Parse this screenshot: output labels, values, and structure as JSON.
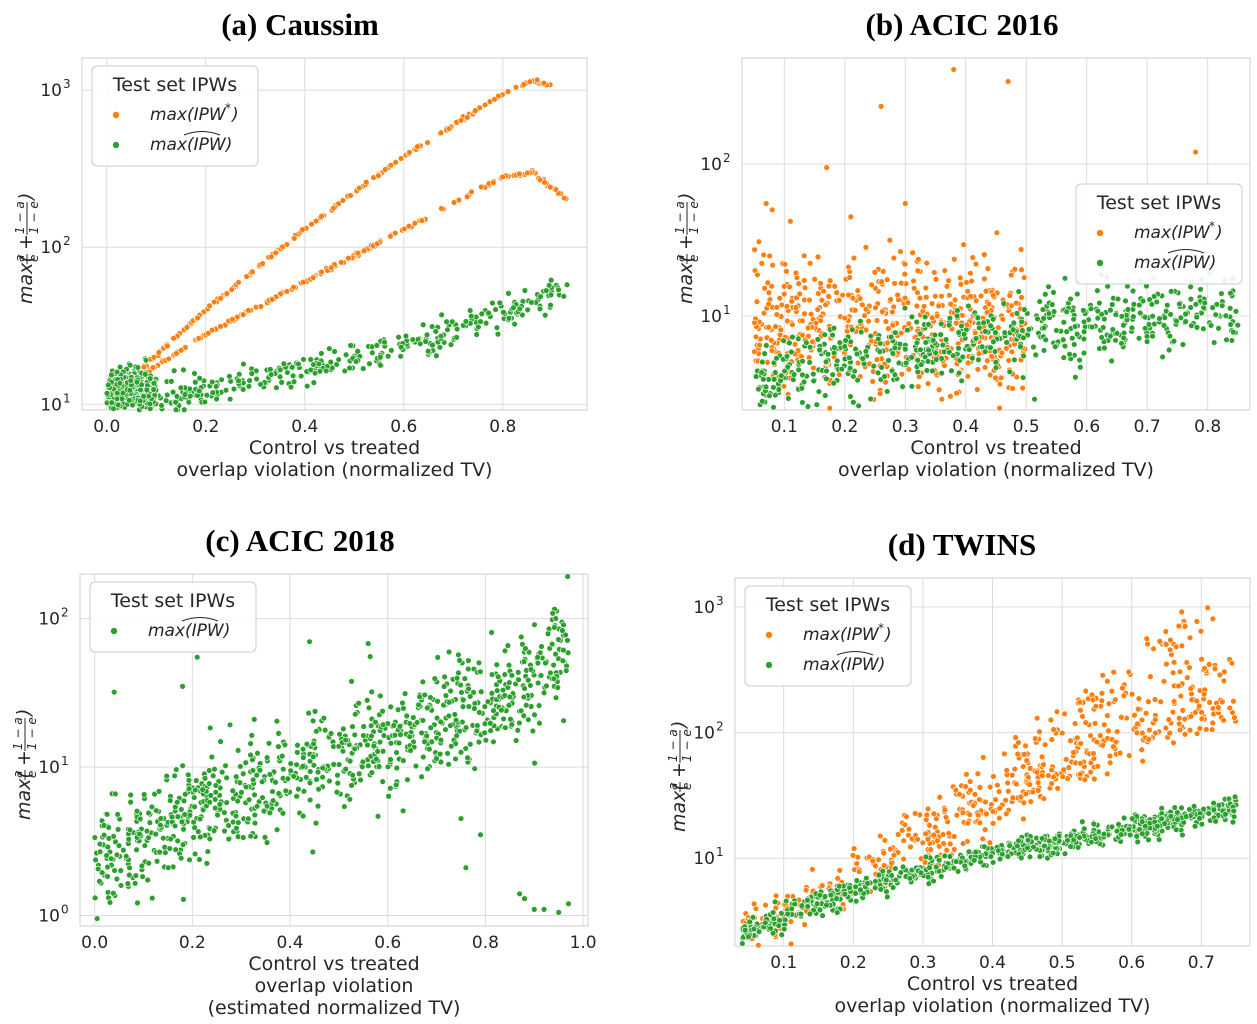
{
  "chart_data": [
    {
      "id": "a",
      "type": "scatter",
      "title": "(a) Caussim",
      "xlabel": [
        "Control vs treated",
        "overlap violation (normalized TV)"
      ],
      "ylabel": "max(a/e + (1−a)/(1−e))",
      "yscale": "log",
      "xlim": [
        -0.05,
        0.97
      ],
      "ylim": [
        9.2,
        1600
      ],
      "xticks": [
        0.0,
        0.2,
        0.4,
        0.6,
        0.8
      ],
      "xtick_labels": [
        "0.0",
        "0.2",
        "0.4",
        "0.6",
        "0.8"
      ],
      "yticks": [
        10,
        100,
        1000
      ],
      "ytick_labels": [
        {
          "base": "10",
          "exp": "1"
        },
        {
          "base": "10",
          "exp": "2"
        },
        {
          "base": "10",
          "exp": "3"
        }
      ],
      "grid": true,
      "legend": {
        "title": "Test set IPWs",
        "placement": "top-left",
        "entries": [
          "max(IPW*)",
          "max(IPW^)"
        ]
      },
      "series": [
        {
          "name": "max(IPW*)",
          "color": "#ff7f0e",
          "count": 380,
          "trends": [
            {
              "x": [
                0.02,
                0.2,
                0.4,
                0.6,
                0.8,
                0.86,
                0.9
              ],
              "y": [
                12,
                40,
                130,
                380,
                950,
                1150,
                1050
              ],
              "spread": 0.005
            },
            {
              "x": [
                0.02,
                0.2,
                0.4,
                0.6,
                0.8,
                0.86,
                0.93
              ],
              "y": [
                12,
                28,
                60,
                130,
                280,
                300,
                200
              ],
              "spread": 0.005
            }
          ]
        },
        {
          "name": "max(IPW^)",
          "color": "#2ca02c",
          "count": 700,
          "trends": [
            {
              "x": [
                0.0,
                0.1,
                0.2,
                0.4,
                0.6,
                0.8,
                0.93
              ],
              "y": [
                11,
                11,
                12,
                17,
                23,
                38,
                55
              ],
              "spread": 0.05
            },
            {
              "x": [
                0.0,
                0.05,
                0.1
              ],
              "y": [
                12,
                13,
                11
              ],
              "spread": 0.07
            }
          ]
        }
      ]
    },
    {
      "id": "b",
      "type": "scatter",
      "title": "(b) ACIC 2016",
      "xlabel": [
        "Control vs treated",
        "overlap violation (normalized TV)"
      ],
      "ylabel": "max(a/e + (1−a)/(1−e))",
      "yscale": "log",
      "xlim": [
        0.03,
        0.87
      ],
      "ylim": [
        2.4,
        500
      ],
      "xticks": [
        0.1,
        0.2,
        0.3,
        0.4,
        0.5,
        0.6,
        0.7,
        0.8
      ],
      "xtick_labels": [
        "0.1",
        "0.2",
        "0.3",
        "0.4",
        "0.5",
        "0.6",
        "0.7",
        "0.8"
      ],
      "yticks": [
        10,
        100
      ],
      "ytick_labels": [
        {
          "base": "10",
          "exp": "1"
        },
        {
          "base": "10",
          "exp": "2"
        }
      ],
      "grid": true,
      "legend": {
        "title": "Test set IPWs",
        "placement": "center-right",
        "entries": [
          "max(IPW*)",
          "max(IPW^)"
        ]
      },
      "series": [
        {
          "name": "max(IPW*)",
          "color": "#ff7f0e",
          "count": 600,
          "trends": [
            {
              "x": [
                0.05,
                0.2,
                0.4,
                0.5
              ],
              "y": [
                8,
                9,
                8.5,
                8
              ],
              "spread": 0.25
            }
          ],
          "extra_points": [
            [
              0.38,
              420
            ],
            [
              0.47,
              350
            ],
            [
              0.26,
              240
            ],
            [
              0.78,
              120
            ],
            [
              0.17,
              95
            ],
            [
              0.07,
              55
            ],
            [
              0.08,
              50
            ],
            [
              0.3,
              55
            ],
            [
              0.21,
              45
            ],
            [
              0.11,
              42
            ]
          ]
        },
        {
          "name": "max(IPW^)",
          "color": "#2ca02c",
          "count": 600,
          "trends": [
            {
              "x": [
                0.05,
                0.1,
                0.2,
                0.3,
                0.4,
                0.5,
                0.65,
                0.85
              ],
              "y": [
                3.3,
                4.2,
                5.2,
                6.2,
                7,
                8,
                9,
                11
              ],
              "spread": 0.12
            }
          ]
        }
      ]
    },
    {
      "id": "c",
      "type": "scatter",
      "title": "(c) ACIC 2018",
      "xlabel": [
        "Control vs treated",
        "overlap violation",
        "(estimated normalized TV)"
      ],
      "ylabel": "max(a/e + (1−a)/(1−e))",
      "yscale": "log",
      "xlim": [
        -0.03,
        1.01
      ],
      "ylim": [
        0.85,
        200
      ],
      "xticks": [
        0.0,
        0.2,
        0.4,
        0.6,
        0.8,
        1.0
      ],
      "xtick_labels": [
        "0.0",
        "0.2",
        "0.4",
        "0.6",
        "0.8",
        "1.0"
      ],
      "yticks": [
        1,
        10,
        100
      ],
      "ytick_labels": [
        {
          "base": "10",
          "exp": "0"
        },
        {
          "base": "10",
          "exp": "1"
        },
        {
          "base": "10",
          "exp": "2"
        }
      ],
      "grid": true,
      "legend": {
        "title": "Test set IPWs",
        "placement": "top-left",
        "entries": [
          "max(IPW^)"
        ]
      },
      "series": [
        {
          "name": "max(IPW^)",
          "color": "#2ca02c",
          "count": 900,
          "trends": [
            {
              "x": [
                0.0,
                0.1,
                0.2,
                0.4,
                0.6,
                0.8,
                0.9,
                0.97
              ],
              "y": [
                2.5,
                3.3,
                5,
                9,
                15,
                25,
                40,
                70
              ],
              "spread": 0.18
            }
          ],
          "extra_points": [
            [
              0.04,
              32
            ],
            [
              0.18,
              35
            ],
            [
              0.21,
              55
            ],
            [
              0.44,
              70
            ],
            [
              0.56,
              68
            ],
            [
              0.87,
              1.4
            ],
            [
              0.88,
              1.3
            ],
            [
              0.92,
              1.1
            ],
            [
              0.95,
              1.05
            ],
            [
              0.97,
              1.2
            ],
            [
              0.9,
              1.1
            ],
            [
              0.76,
              2.1
            ],
            [
              0.75,
              4.5
            ],
            [
              0.79,
              3.5
            ]
          ]
        }
      ]
    },
    {
      "id": "d",
      "type": "scatter",
      "title": "(d) TWINS",
      "xlabel": [
        "Control vs treated",
        "overlap violation (normalized TV)"
      ],
      "ylabel": "max(a/e + (1−a)/(1−e))",
      "yscale": "log",
      "xlim": [
        0.03,
        0.77
      ],
      "ylim": [
        2.0,
        1700
      ],
      "xticks": [
        0.1,
        0.2,
        0.3,
        0.4,
        0.5,
        0.6,
        0.7
      ],
      "xtick_labels": [
        "0.1",
        "0.2",
        "0.3",
        "0.4",
        "0.5",
        "0.6",
        "0.7"
      ],
      "yticks": [
        10,
        100,
        1000
      ],
      "ytick_labels": [
        {
          "base": "10",
          "exp": "1"
        },
        {
          "base": "10",
          "exp": "2"
        },
        {
          "base": "10",
          "exp": "3"
        }
      ],
      "grid": true,
      "legend": {
        "title": "Test set IPWs",
        "placement": "top-left",
        "entries": [
          "max(IPW*)",
          "max(IPW^)"
        ]
      },
      "series": [
        {
          "name": "max(IPW*)",
          "color": "#ff7f0e",
          "count": 600,
          "trends": [
            {
              "x": [
                0.04,
                0.2,
                0.4,
                0.6,
                0.72
              ],
              "y": [
                2.5,
                8,
                45,
                300,
                1000
              ],
              "spread": 0.1
            },
            {
              "x": [
                0.04,
                0.2,
                0.4,
                0.6,
                0.75
              ],
              "y": [
                2.5,
                6,
                25,
                130,
                400
              ],
              "spread": 0.1
            },
            {
              "x": [
                0.3,
                0.5,
                0.6,
                0.75
              ],
              "y": [
                12,
                50,
                90,
                180
              ],
              "spread": 0.1
            }
          ]
        },
        {
          "name": "max(IPW^)",
          "color": "#2ca02c",
          "count": 700,
          "trends": [
            {
              "x": [
                0.04,
                0.1,
                0.2,
                0.3,
                0.4,
                0.5,
                0.6,
                0.75
              ],
              "y": [
                2.5,
                3.5,
                5.5,
                8,
                11,
                13.5,
                17,
                26
              ],
              "spread": 0.05
            }
          ]
        }
      ]
    }
  ]
}
